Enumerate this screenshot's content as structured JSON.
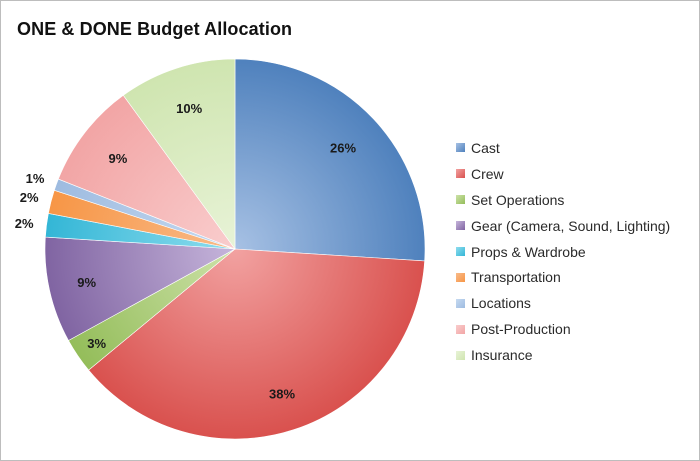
{
  "chart_data": {
    "type": "pie",
    "title": "ONE & DONE Budget Allocation",
    "start_angle_deg": 0,
    "direction": "clockwise",
    "legend_position": "right",
    "slices": [
      {
        "label": "Cast",
        "value": 26,
        "value_label": "26%",
        "color": "#4F81BD",
        "light": "#A7C1E4"
      },
      {
        "label": "Crew",
        "value": 38,
        "value_label": "38%",
        "color": "#D9514E",
        "light": "#F2A2A1"
      },
      {
        "label": "Set Operations",
        "value": 3,
        "value_label": "3%",
        "color": "#94BD5A",
        "light": "#CDE2A9"
      },
      {
        "label": "Gear  (Camera, Sound, Lighting)",
        "value": 9,
        "value_label": "9%",
        "color": "#8064A2",
        "light": "#C6B5DB"
      },
      {
        "label": "Props & Wardrobe",
        "value": 2,
        "value_label": "2%",
        "color": "#33B6D6",
        "light": "#8FDDEE"
      },
      {
        "label": "Transportation",
        "value": 2,
        "value_label": "2%",
        "color": "#F79646",
        "light": "#F8BB8A"
      },
      {
        "label": "Locations",
        "value": 1,
        "value_label": "1%",
        "color": "#9EBBE0",
        "light": "#C6DAF1"
      },
      {
        "label": "Post-Production",
        "value": 9,
        "value_label": "9%",
        "color": "#F2A5A5",
        "light": "#F9CDCD"
      },
      {
        "label": "Insurance",
        "value": 10,
        "value_label": "10%",
        "color": "#CFE5B0",
        "light": "#E8F3D7"
      }
    ]
  }
}
